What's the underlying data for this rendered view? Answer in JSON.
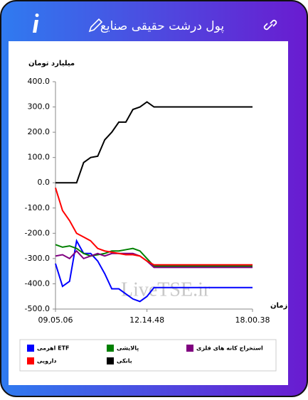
{
  "header": {
    "title": "پول درشت حقیقی صنایع"
  },
  "watermark": "LiveTSE.ir",
  "chart_data": {
    "type": "line",
    "y_label": "میلیارد تومان",
    "x_label": "زمان",
    "categories": [
      "09.05.06",
      null,
      null,
      null,
      null,
      null,
      null,
      null,
      null,
      null,
      null,
      null,
      null,
      "12.14.48",
      null,
      null,
      null,
      null,
      null,
      null,
      null,
      null,
      null,
      null,
      null,
      null,
      null,
      null,
      "18.00.38"
    ],
    "ylim": [
      -500,
      400
    ],
    "yticks": [
      {
        "value": -500,
        "label": "-500.0"
      },
      {
        "value": -400,
        "label": "-400.0"
      },
      {
        "value": -300,
        "label": "-300.0"
      },
      {
        "value": -200,
        "label": "-200.0"
      },
      {
        "value": -100,
        "label": "-100.0"
      },
      {
        "value": 0,
        "label": "0.0"
      },
      {
        "value": 100,
        "label": "100.0"
      },
      {
        "value": 200,
        "label": "200.0"
      },
      {
        "value": 300,
        "label": "300.0"
      },
      {
        "value": 400,
        "label": "400.0"
      }
    ],
    "grid": false,
    "series": [
      {
        "name": "اهرمی ETF",
        "color": "#0000ff",
        "values": [
          -320,
          -410,
          -390,
          -230,
          -280,
          -280,
          -310,
          -360,
          -420,
          -420,
          -440,
          -460,
          -470,
          -450,
          -415,
          -415,
          -415,
          -415,
          -415,
          -415,
          -415,
          -415,
          -415,
          -415,
          -415,
          -415,
          -415,
          -415,
          -415
        ]
      },
      {
        "name": "پالایشی",
        "color": "#008000",
        "values": [
          -245,
          -255,
          -250,
          -260,
          -280,
          -290,
          -285,
          -280,
          -270,
          -270,
          -265,
          -260,
          -270,
          -300,
          -330,
          -330,
          -330,
          -330,
          -330,
          -330,
          -330,
          -330,
          -330,
          -330,
          -330,
          -330,
          -330,
          -330,
          -330
        ]
      },
      {
        "name": "استخراج کانه های فلزی",
        "color": "#800080",
        "values": [
          -290,
          -285,
          -300,
          -270,
          -300,
          -290,
          -280,
          -290,
          -280,
          -280,
          -280,
          -280,
          -290,
          -310,
          -335,
          -335,
          -335,
          -335,
          -335,
          -335,
          -335,
          -335,
          -335,
          -335,
          -335,
          -335,
          -335,
          -335,
          -335
        ]
      },
      {
        "name": "دارویی",
        "color": "#ff0000",
        "values": [
          -20,
          -110,
          -150,
          -200,
          -215,
          -230,
          -260,
          -270,
          -275,
          -280,
          -285,
          -285,
          -290,
          -310,
          -325,
          -325,
          -325,
          -325,
          -325,
          -325,
          -325,
          -325,
          -325,
          -325,
          -325,
          -325,
          -325,
          -325,
          -325
        ]
      },
      {
        "name": "بانکی",
        "color": "#000000",
        "values": [
          0,
          0,
          0,
          0,
          80,
          100,
          105,
          170,
          200,
          240,
          240,
          290,
          300,
          320,
          300,
          300,
          300,
          300,
          300,
          300,
          300,
          300,
          300,
          300,
          300,
          300,
          300,
          300,
          300
        ]
      }
    ]
  }
}
